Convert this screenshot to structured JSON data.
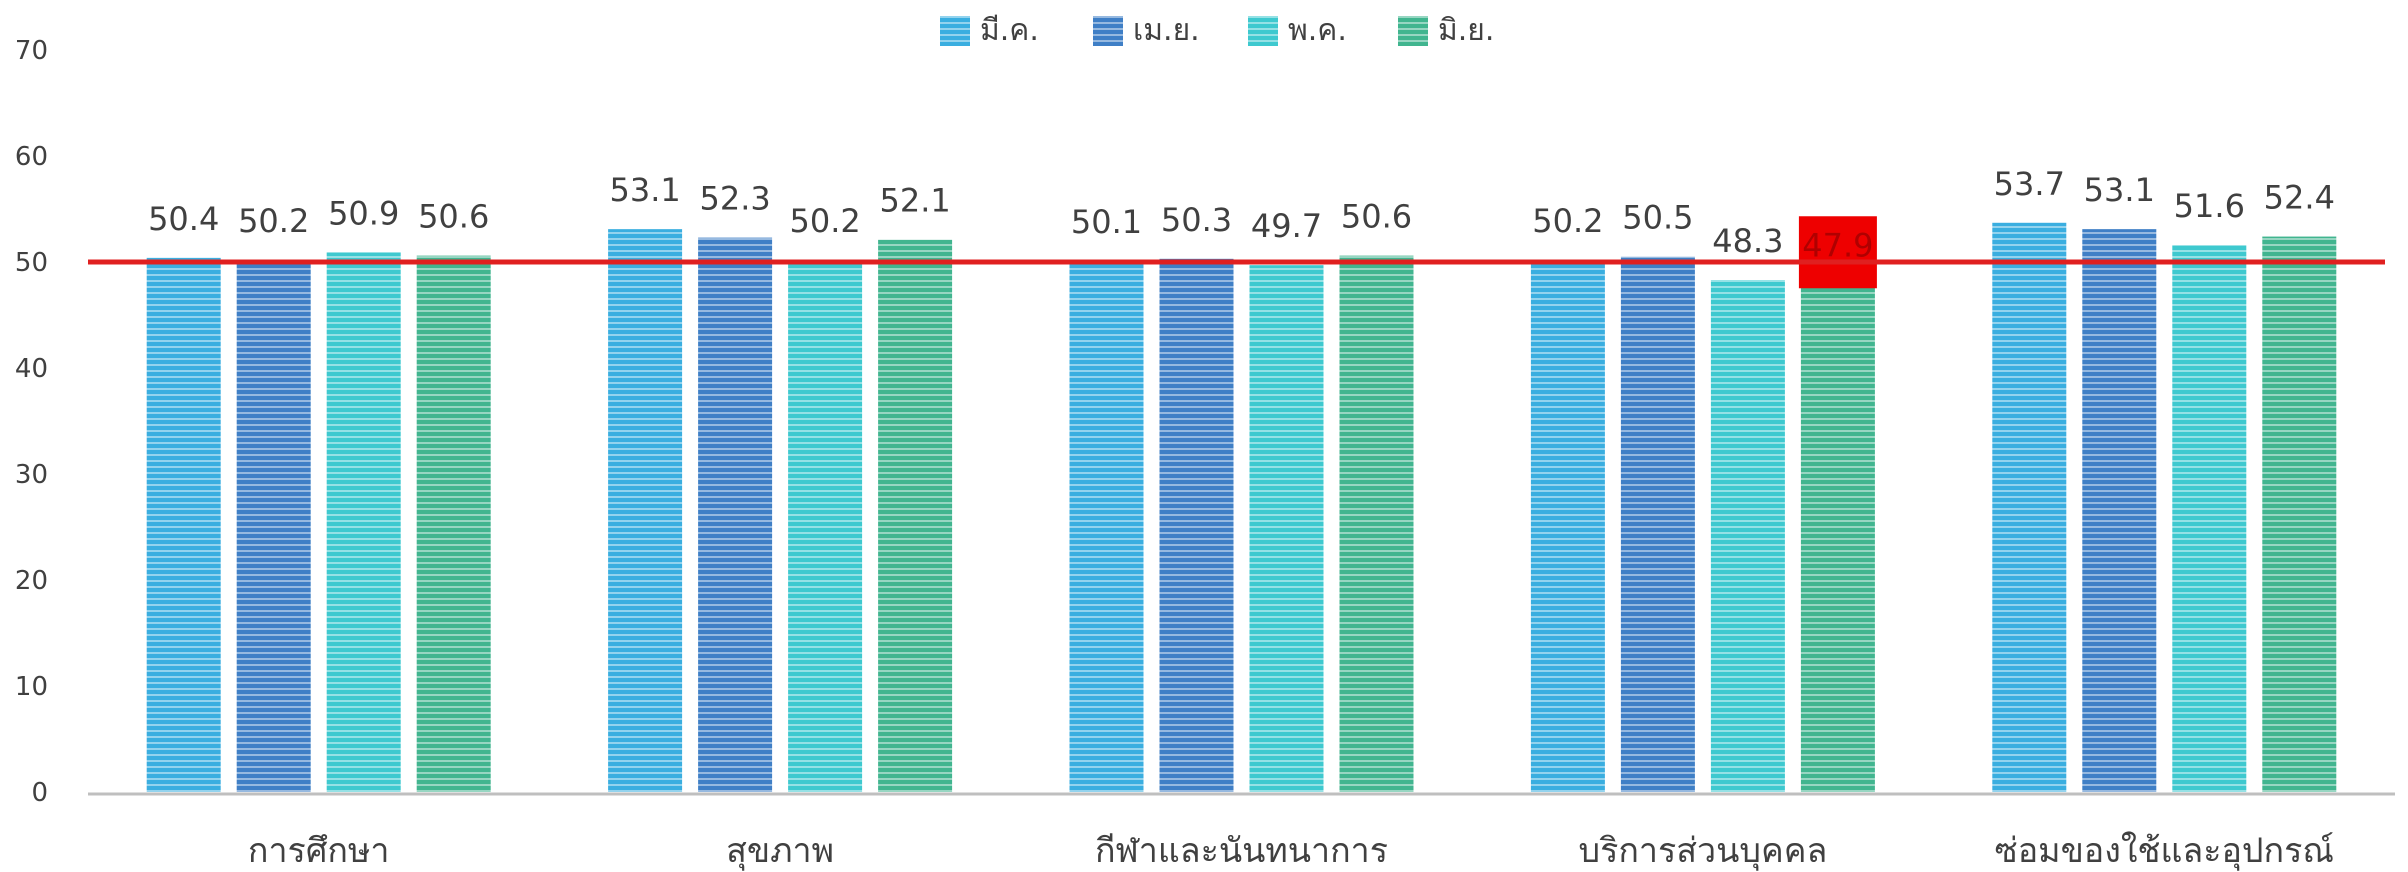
{
  "chart_data": {
    "type": "bar",
    "categories": [
      "การศึกษา",
      "สุขภาพ",
      "กีฬาและนันทนาการ",
      "บริการส่วนบุคคล",
      "ซ่อมของใช้และอุปกรณ์"
    ],
    "series": [
      {
        "name": "มี.ค.",
        "color": "#3aaee0",
        "values": [
          50.4,
          53.1,
          50.1,
          50.2,
          53.7
        ]
      },
      {
        "name": "เม.ย.",
        "color": "#3f7fc6",
        "values": [
          50.2,
          52.3,
          50.3,
          50.5,
          53.1
        ]
      },
      {
        "name": "พ.ค.",
        "color": "#3ec9cf",
        "values": [
          50.9,
          50.2,
          49.7,
          48.3,
          51.6
        ]
      },
      {
        "name": "มิ.ย.",
        "color": "#41b58f",
        "values": [
          50.6,
          52.1,
          50.6,
          47.9,
          52.4
        ]
      }
    ],
    "ylim": [
      0,
      70
    ],
    "yticks": [
      "0",
      "10",
      "20",
      "30",
      "40",
      "50",
      "60",
      "70"
    ],
    "reference_line": {
      "value": 50,
      "color": "#e02020"
    },
    "highlight": {
      "category_index": 3,
      "series_index": 3,
      "color": "#ee0000"
    },
    "legend_position": "top-center",
    "grid": false
  }
}
